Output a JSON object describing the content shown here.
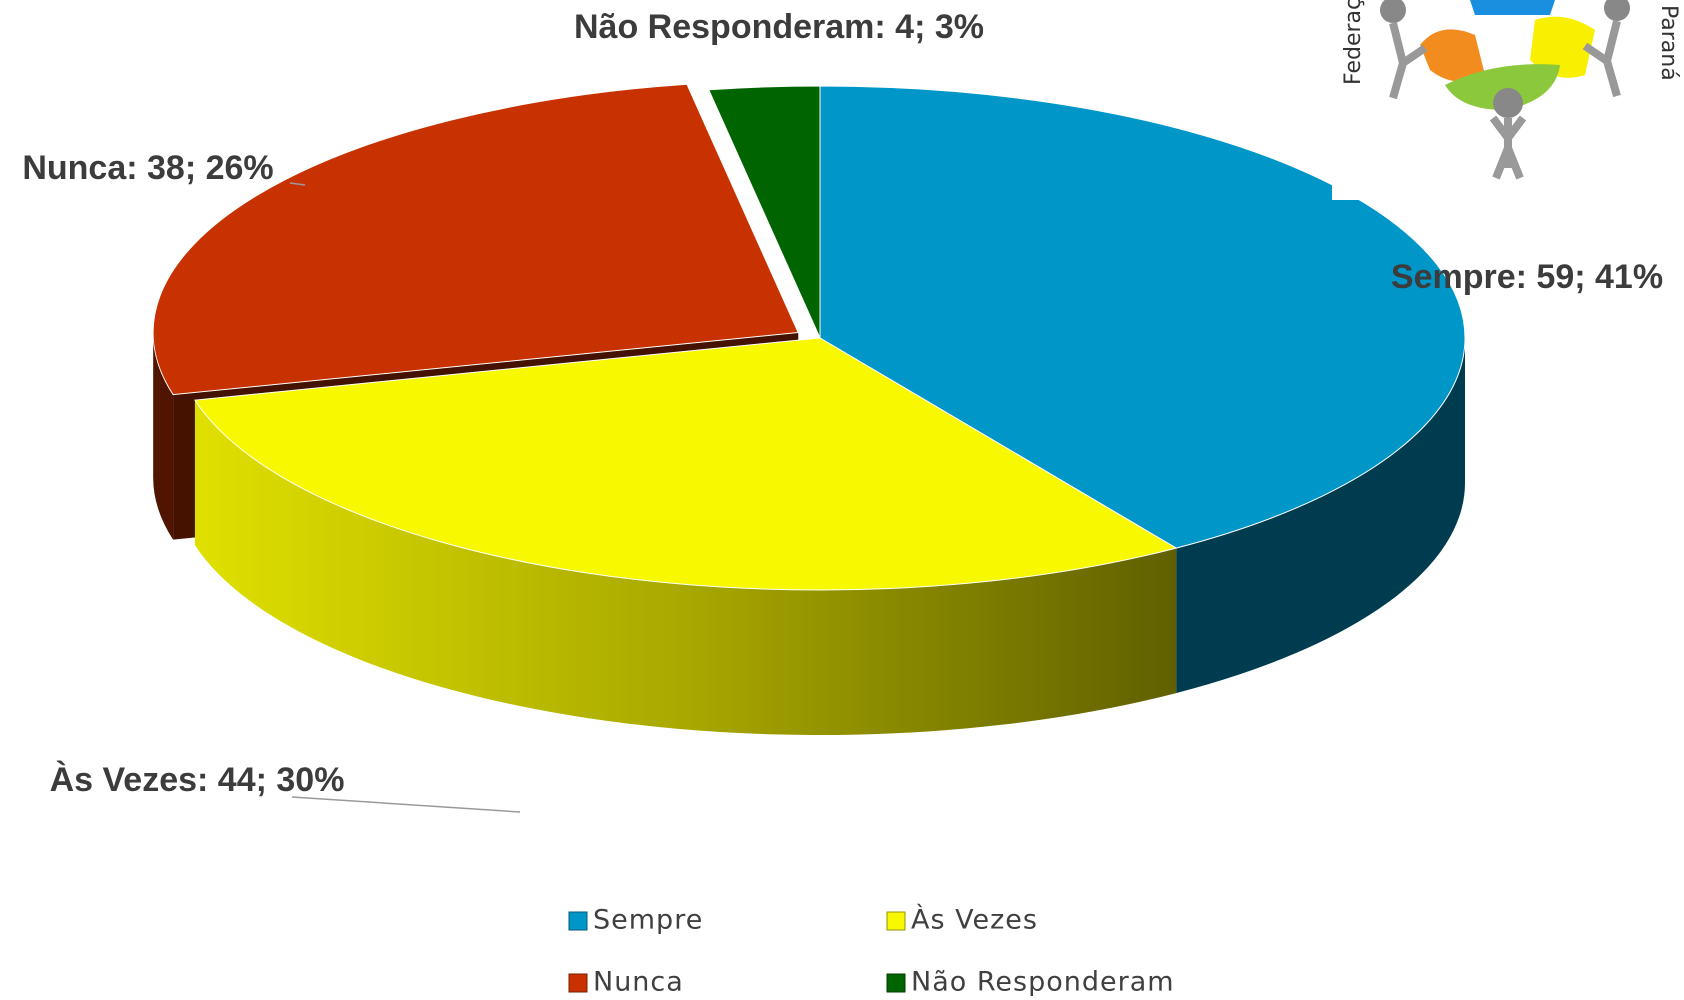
{
  "chart_data": {
    "type": "pie3d",
    "categories": [
      "Sempre",
      "Às Vezes",
      "Nunca",
      "Não Responderam"
    ],
    "values": [
      59,
      44,
      38,
      4
    ],
    "value_labels": [
      "Sempre: 59; 41%",
      "Às Vezes: 44; 30%",
      "Nunca: 38; 26%",
      "Não Responderam: 4; 3%"
    ],
    "colors": [
      "#0096c8",
      "#f8f800",
      "#c83200",
      "#006400"
    ],
    "exploded": [
      false,
      false,
      true,
      false
    ],
    "legend": "bottom"
  },
  "logo": {
    "left_text": "Federaç",
    "right_text": "Paraná"
  }
}
